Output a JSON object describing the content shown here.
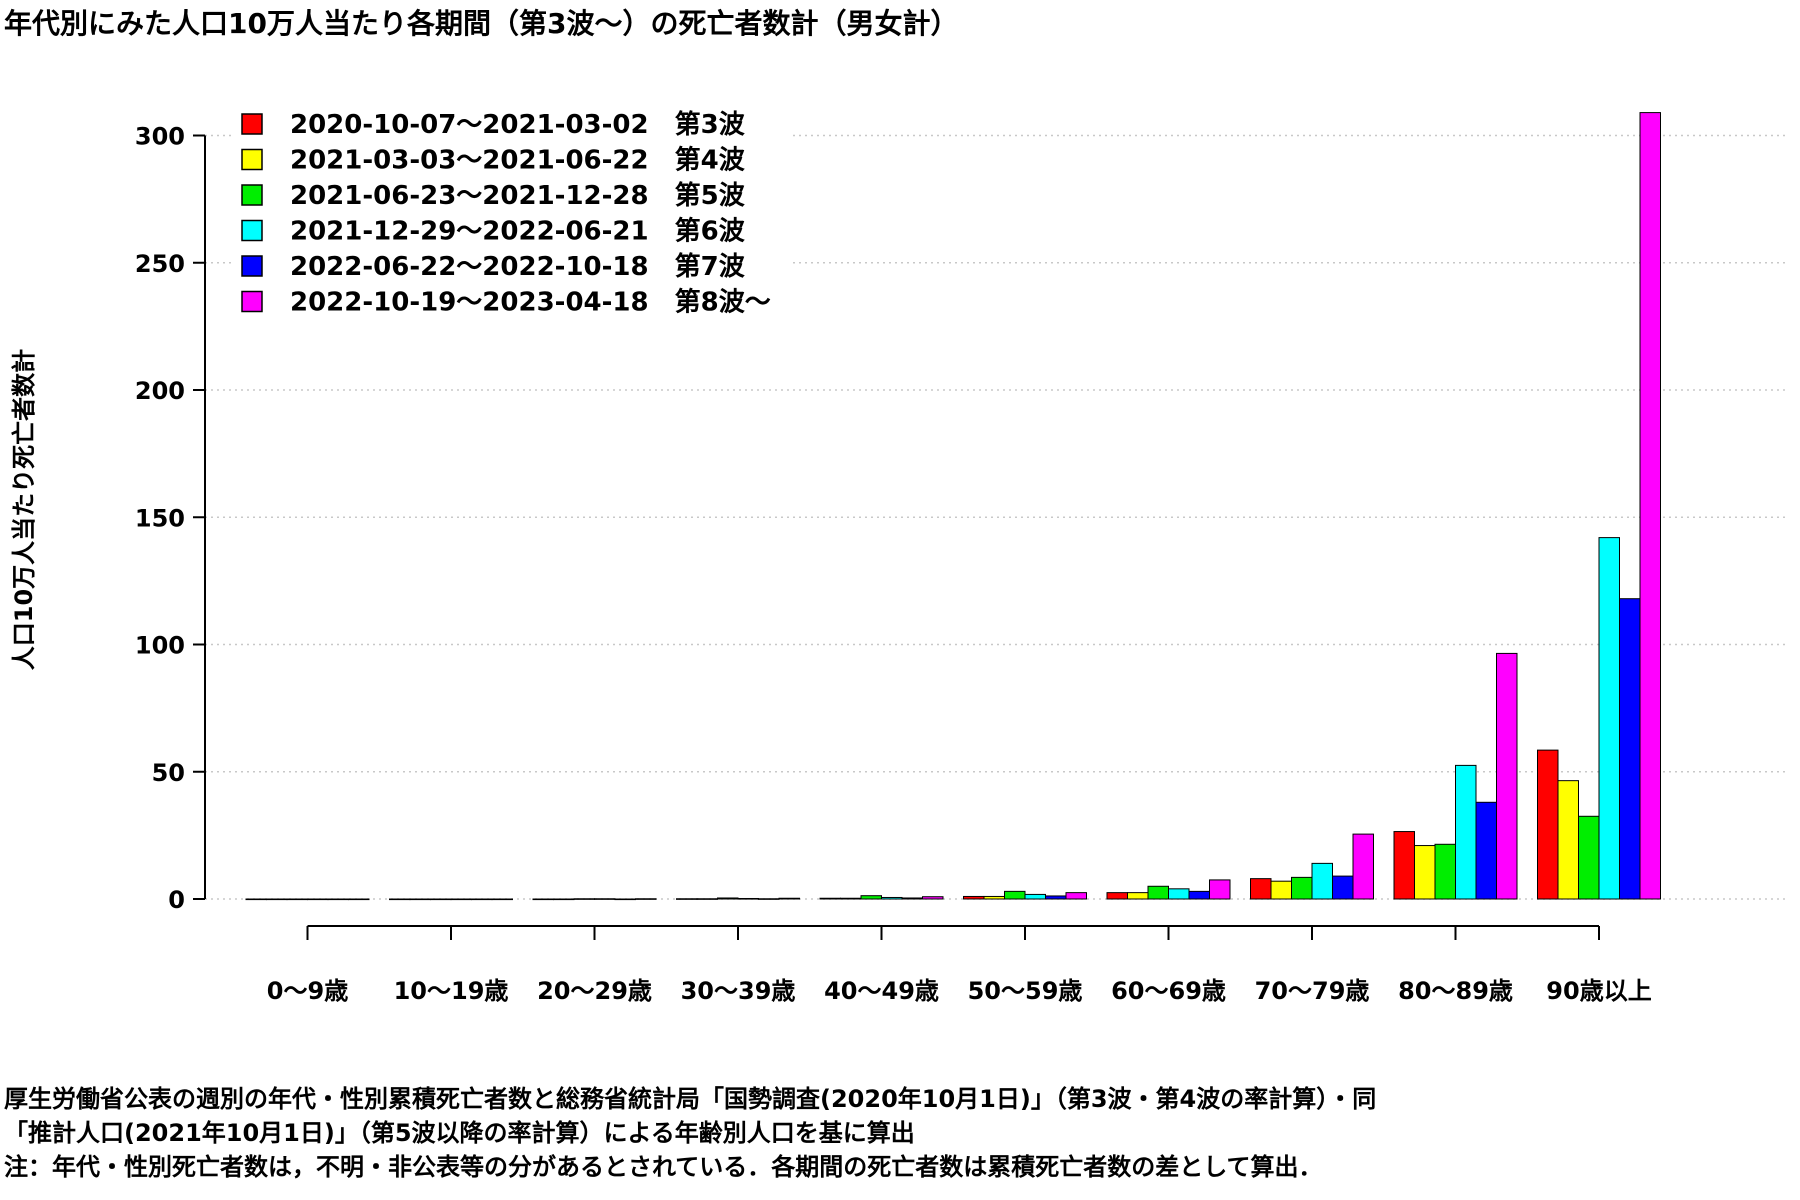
{
  "title": "年代別にみた人口10万人当たり各期間（第3波～）の死亡者数計（男女計）",
  "chart_data": {
    "type": "bar",
    "ylabel": "人口10万人当たり死亡者数計",
    "xlabel": "",
    "ylim": [
      0,
      310
    ],
    "yticks": [
      0,
      50,
      100,
      150,
      200,
      250,
      300
    ],
    "grid": "horizontal dotted",
    "legend_position": "top-left",
    "categories": [
      "0～9歳",
      "10～19歳",
      "20～29歳",
      "30～39歳",
      "40～49歳",
      "50～59歳",
      "60～69歳",
      "70～79歳",
      "80～89歳",
      "90歳以上"
    ],
    "series": [
      {
        "name": "2020-10-07～2021-03-02　第3波",
        "color": "#ff0000",
        "values": [
          0,
          0,
          0,
          0.1,
          0.3,
          1.0,
          2.5,
          8.0,
          26.5,
          58.5
        ]
      },
      {
        "name": "2021-03-03～2021-06-22　第4波",
        "color": "#ffff00",
        "values": [
          0,
          0,
          0,
          0.1,
          0.3,
          1.0,
          2.5,
          7.0,
          21.0,
          46.5
        ]
      },
      {
        "name": "2021-06-23～2021-12-28　第5波",
        "color": "#00ee00",
        "values": [
          0,
          0,
          0.1,
          0.4,
          1.3,
          3.0,
          5.0,
          8.5,
          21.5,
          32.5
        ]
      },
      {
        "name": "2021-12-29～2022-06-21　第6波",
        "color": "#00ffff",
        "values": [
          0,
          0,
          0.1,
          0.2,
          0.6,
          1.8,
          4.0,
          14.0,
          52.5,
          142.0
        ]
      },
      {
        "name": "2022-06-22～2022-10-18　第7波",
        "color": "#0000ff",
        "values": [
          0,
          0,
          0,
          0.1,
          0.4,
          1.2,
          3.0,
          9.0,
          38.0,
          118.0
        ]
      },
      {
        "name": "2022-10-19～2023-04-18　第8波～",
        "color": "#ff00ff",
        "values": [
          0,
          0,
          0.1,
          0.3,
          0.9,
          2.5,
          7.5,
          25.5,
          96.5,
          309.0
        ]
      }
    ]
  },
  "notes": [
    "厚生労働省公表の週別の年代・性別累積死亡者数と総務省統計局「国勢調査(2020年10月1日)」（第3波・第4波の率計算）・同",
    "「推計人口(2021年10月1日)」（第5波以降の率計算）による年齢別人口を基に算出",
    "注：年代・性別死亡者数は，不明・非公表等の分があるとされている．各期間の死亡者数は累積死亡者数の差として算出．"
  ]
}
